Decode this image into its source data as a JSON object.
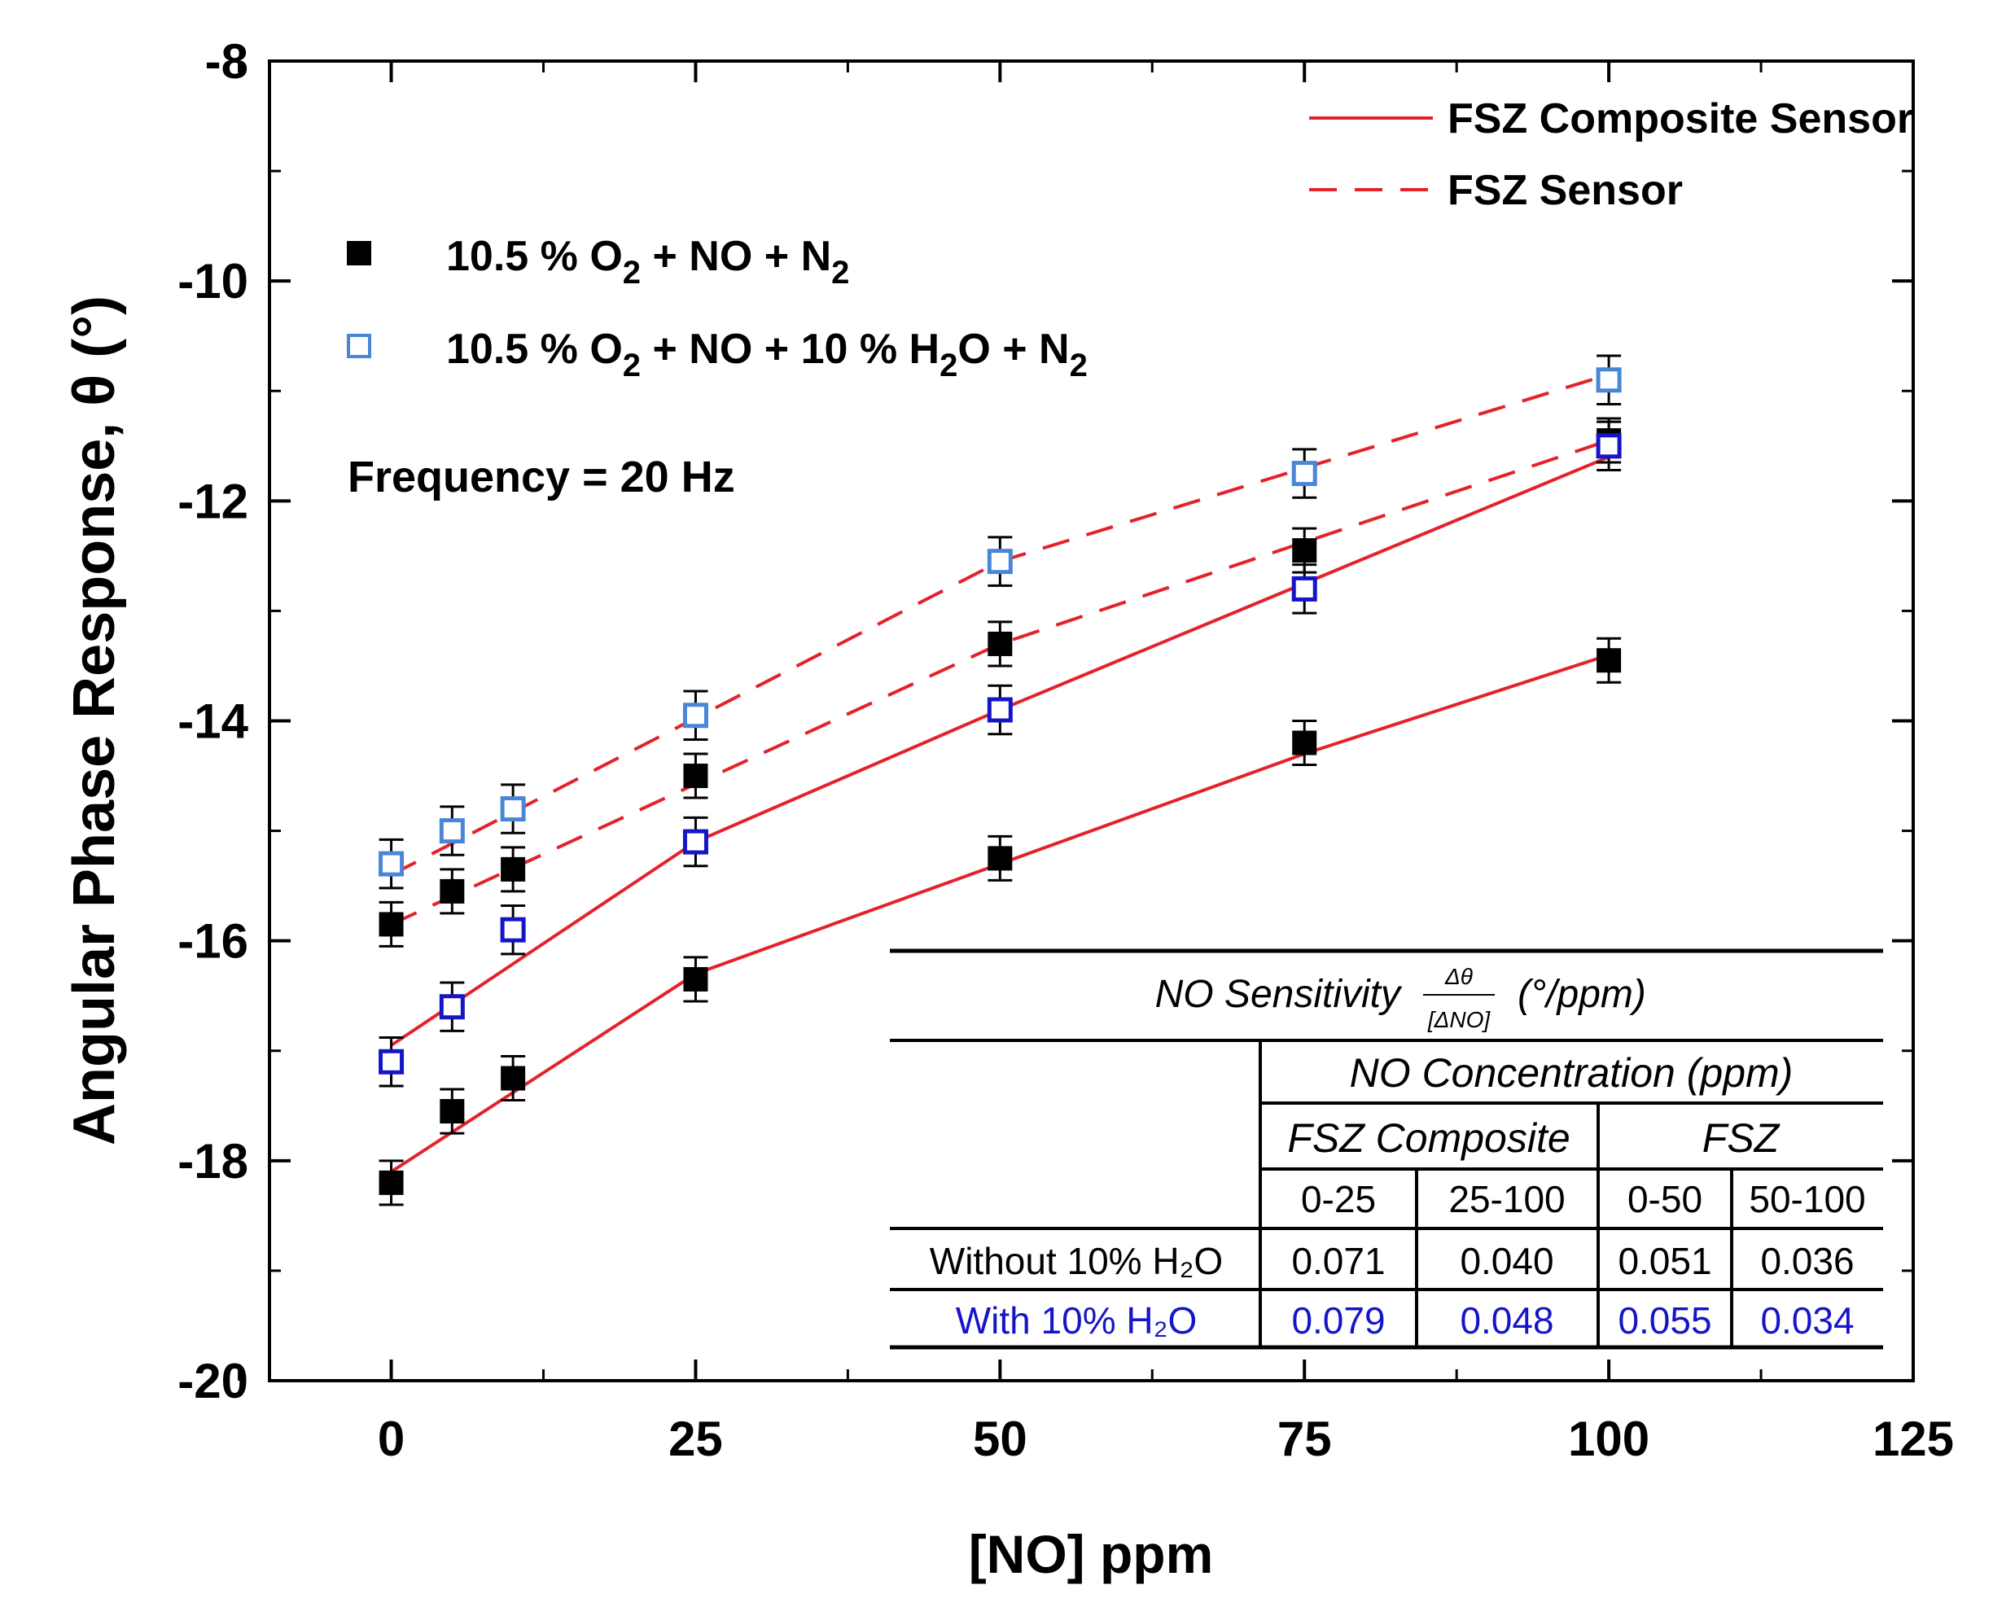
{
  "chart_data": {
    "type": "scatter",
    "xlabel": "[NO] ppm",
    "ylabel": "Angular Phase Response, θ (°)",
    "xlim": [
      -10,
      125
    ],
    "ylim": [
      -20,
      -8
    ],
    "x_ticks": [
      "0",
      "25",
      "50",
      "75",
      "100",
      "125"
    ],
    "y_ticks": [
      "-8",
      "-10",
      "-12",
      "-14",
      "-16",
      "-18",
      "-20"
    ],
    "annotation": "Frequency = 20 Hz",
    "colors": {
      "fit": "#e4222b",
      "dry": "#000000",
      "wet_fsz": "#4a86d6",
      "wet_comp": "#1515c8",
      "table_wet_text": "#1515c8",
      "rule": "#000000"
    },
    "legend_lines": [
      {
        "label": "FSZ Composite Sensor",
        "style": "solid"
      },
      {
        "label": "FSZ Sensor",
        "style": "dashed"
      }
    ],
    "legend_markers": [
      {
        "marker": "filled-square",
        "parts": [
          "10.5 % O",
          "2",
          " +  NO + N",
          "2"
        ]
      },
      {
        "marker": "open-square",
        "parts": [
          "10.5 % O",
          "2",
          " +  NO + 10 % H",
          "2",
          "O + N",
          "2"
        ]
      }
    ],
    "series": [
      {
        "name": "Without H2O - FSZ Sensor",
        "marker": "filled",
        "color": "#000000",
        "x": [
          0,
          5,
          10,
          25,
          50,
          75,
          100
        ],
        "y": [
          -15.85,
          -15.55,
          -15.35,
          -14.5,
          -13.3,
          -12.45,
          -11.45
        ],
        "err": 0.2
      },
      {
        "name": "Without H2O - FSZ Composite Sensor",
        "marker": "filled",
        "color": "#000000",
        "x": [
          0,
          5,
          10,
          25,
          50,
          75,
          100
        ],
        "y": [
          -18.2,
          -17.55,
          -17.25,
          -16.35,
          -15.25,
          -14.2,
          -13.45
        ],
        "err": 0.2
      },
      {
        "name": "With H2O - FSZ Sensor",
        "marker": "open",
        "color": "#4a86d6",
        "x": [
          0,
          5,
          10,
          25,
          50,
          75,
          100
        ],
        "y": [
          -15.3,
          -15.0,
          -14.8,
          -13.95,
          -12.55,
          -11.75,
          -10.9
        ],
        "err": 0.22
      },
      {
        "name": "With H2O - FSZ Composite Sensor",
        "marker": "open",
        "color": "#1515c8",
        "x": [
          0,
          5,
          10,
          25,
          50,
          75,
          100
        ],
        "y": [
          -17.1,
          -16.6,
          -15.9,
          -15.1,
          -13.9,
          -12.8,
          -11.5
        ],
        "err": 0.22
      }
    ],
    "fit_lines": [
      {
        "name": "FSZ Composite Sensor - dry fit",
        "style": "solid",
        "x": [
          0,
          25,
          50,
          75,
          100
        ],
        "y": [
          -18.1,
          -16.3,
          -15.3,
          -14.3,
          -13.4
        ]
      },
      {
        "name": "FSZ Composite Sensor - wet fit",
        "style": "solid",
        "x": [
          0,
          25,
          50,
          75,
          100
        ],
        "y": [
          -16.95,
          -15.1,
          -13.9,
          -12.75,
          -11.6
        ]
      },
      {
        "name": "FSZ Sensor - dry fit",
        "style": "dashed",
        "x": [
          0,
          50,
          100
        ],
        "y": [
          -15.85,
          -13.3,
          -11.45
        ]
      },
      {
        "name": "FSZ Sensor - wet fit",
        "style": "dashed",
        "x": [
          0,
          50,
          100
        ],
        "y": [
          -15.4,
          -12.55,
          -10.85
        ]
      }
    ],
    "inset_table": {
      "title_prefix": "NO Sensitivity",
      "frac_num": "Δθ",
      "frac_den": "[ΔNO]",
      "title_suffix": "(°/ppm)",
      "group_header": "NO Concentration (ppm)",
      "sensor_headers": [
        "FSZ Composite",
        "FSZ"
      ],
      "range_headers": [
        "0-25",
        "25-100",
        "0-50",
        "50-100"
      ],
      "rows": [
        {
          "label": "Without 10% H₂O",
          "values": [
            "0.071",
            "0.040",
            "0.051",
            "0.036"
          ],
          "wet": false
        },
        {
          "label": "With 10% H₂O",
          "values": [
            "0.079",
            "0.048",
            "0.055",
            "0.034"
          ],
          "wet": true
        }
      ]
    }
  }
}
